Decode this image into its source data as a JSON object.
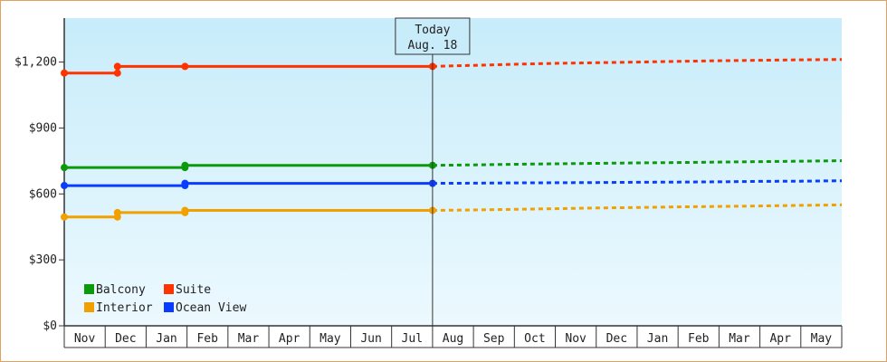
{
  "chart_data": {
    "type": "line",
    "title": "",
    "xlabel": "",
    "ylabel": "",
    "ylim": [
      0,
      1400
    ],
    "y_ticks": [
      0,
      300,
      600,
      900,
      1200
    ],
    "y_tick_labels": [
      "$0",
      "$300",
      "$600",
      "$900",
      "$1,200"
    ],
    "grid": false,
    "legend_position": "bottom-left",
    "month_labels": [
      "Nov",
      "Dec",
      "Jan",
      "Feb",
      "Mar",
      "Apr",
      "May",
      "Jun",
      "Jul",
      "Aug",
      "Sep",
      "Oct",
      "Nov",
      "Dec",
      "Jan",
      "Feb",
      "Mar",
      "Apr",
      "May"
    ],
    "today": {
      "label_line1": "Today",
      "label_line2": "Aug. 18",
      "month_index": 9.0
    },
    "series": [
      {
        "name": "Balcony",
        "color": "#0a9a0a",
        "history": [
          [
            0.0,
            720
          ],
          [
            1.3,
            720
          ],
          [
            2.9,
            720
          ],
          [
            2.95,
            730
          ],
          [
            9.0,
            730
          ]
        ],
        "forecast": [
          [
            9.0,
            730
          ],
          [
            10.0,
            732
          ],
          [
            11.0,
            735
          ],
          [
            12.0,
            737
          ],
          [
            13.0,
            739
          ],
          [
            14.0,
            741
          ],
          [
            15.0,
            743
          ],
          [
            16.0,
            745
          ],
          [
            17.0,
            747
          ],
          [
            18.0,
            749
          ],
          [
            19.0,
            751
          ]
        ]
      },
      {
        "name": "Suite",
        "color": "#ff3300",
        "history": [
          [
            0.0,
            1150
          ],
          [
            1.3,
            1150
          ],
          [
            1.32,
            1180
          ],
          [
            2.95,
            1180
          ],
          [
            9.0,
            1180
          ]
        ],
        "forecast": [
          [
            9.0,
            1180
          ],
          [
            10.0,
            1185
          ],
          [
            11.0,
            1190
          ],
          [
            12.0,
            1194
          ],
          [
            13.0,
            1197
          ],
          [
            14.0,
            1200
          ],
          [
            15.0,
            1203
          ],
          [
            16.0,
            1206
          ],
          [
            17.0,
            1208
          ],
          [
            18.0,
            1210
          ],
          [
            19.0,
            1212
          ]
        ]
      },
      {
        "name": "Interior",
        "color": "#f2a000",
        "history": [
          [
            0.0,
            495
          ],
          [
            1.3,
            495
          ],
          [
            1.32,
            515
          ],
          [
            2.9,
            515
          ],
          [
            2.95,
            525
          ],
          [
            9.0,
            525
          ]
        ],
        "forecast": [
          [
            9.0,
            525
          ],
          [
            10.0,
            527
          ],
          [
            11.0,
            530
          ],
          [
            12.0,
            533
          ],
          [
            13.0,
            536
          ],
          [
            14.0,
            538
          ],
          [
            15.0,
            541
          ],
          [
            16.0,
            543
          ],
          [
            17.0,
            545
          ],
          [
            18.0,
            548
          ],
          [
            19.0,
            550
          ]
        ]
      },
      {
        "name": "Ocean View",
        "color": "#0a3cff",
        "history": [
          [
            0.0,
            638
          ],
          [
            1.3,
            638
          ],
          [
            2.9,
            638
          ],
          [
            2.95,
            648
          ],
          [
            9.0,
            648
          ]
        ],
        "forecast": [
          [
            9.0,
            648
          ],
          [
            10.0,
            649
          ],
          [
            11.0,
            650
          ],
          [
            12.0,
            651
          ],
          [
            13.0,
            652
          ],
          [
            14.0,
            653
          ],
          [
            15.0,
            654
          ],
          [
            16.0,
            655
          ],
          [
            17.0,
            657
          ],
          [
            18.0,
            658
          ],
          [
            19.0,
            660
          ]
        ]
      }
    ],
    "markers": {
      "Balcony": [
        [
          0.0,
          720
        ],
        [
          2.95,
          720
        ],
        [
          2.95,
          730
        ],
        [
          9.0,
          730
        ]
      ],
      "Suite": [
        [
          0.0,
          1150
        ],
        [
          1.3,
          1150
        ],
        [
          1.3,
          1180
        ],
        [
          2.95,
          1180
        ],
        [
          9.0,
          1180
        ]
      ],
      "Interior": [
        [
          0.0,
          495
        ],
        [
          1.3,
          495
        ],
        [
          1.3,
          515
        ],
        [
          2.95,
          515
        ],
        [
          2.95,
          525
        ],
        [
          9.0,
          525
        ]
      ],
      "Ocean View": [
        [
          0.0,
          638
        ],
        [
          2.95,
          638
        ],
        [
          2.95,
          648
        ],
        [
          9.0,
          648
        ]
      ]
    }
  }
}
